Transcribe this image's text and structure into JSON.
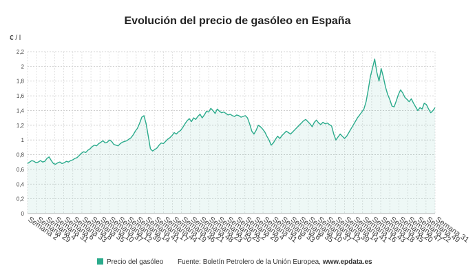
{
  "chart_data": {
    "type": "area",
    "title": "Evolución del precio de gasóleo en España",
    "ylabel": "€ / l",
    "ylim": [
      0,
      2.2
    ],
    "yticks": [
      "0",
      "0,2",
      "0,4",
      "0,6",
      "0,8",
      "1",
      "1,2",
      "1,4",
      "1,6",
      "1,8",
      "2",
      "2,2"
    ],
    "xticks": [
      "Semana 2",
      "Semana 29",
      "Semana 4",
      "Semana 31",
      "Semana 6",
      "Semana 33",
      "Semana 8",
      "Semana 35",
      "Semana 10",
      "Semana 37",
      "Semana 12",
      "Semana 39",
      "Semana 14",
      "Semana 41",
      "Semana 17",
      "Semana 44",
      "Semana 19",
      "Semana 46",
      "Semana 21",
      "Semana 48",
      "Semana 23",
      "Semana 50",
      "Semana 25",
      "Semana 2",
      "Semana 29",
      "Semana 4",
      "Semana 31",
      "Semana 6",
      "Semana 33",
      "Semana 8",
      "Semana 35",
      "Semana 10",
      "Semana 37",
      "Semana 12",
      "Semana 39",
      "Semana 14",
      "Semana 41",
      "Semana 16",
      "Semana 43",
      "Semana 18",
      "Semana 45",
      "Semana 20",
      "Semana 47",
      "Semana 22",
      "Semana 49",
      "Semana 31"
    ],
    "grid": true,
    "legend_position": "bottom",
    "series": [
      {
        "name": "Precio del gasóleo",
        "color": "#2bab8c",
        "values": [
          0.68,
          0.7,
          0.72,
          0.71,
          0.69,
          0.7,
          0.72,
          0.7,
          0.71,
          0.75,
          0.77,
          0.72,
          0.68,
          0.67,
          0.69,
          0.7,
          0.68,
          0.69,
          0.71,
          0.7,
          0.72,
          0.73,
          0.75,
          0.76,
          0.79,
          0.82,
          0.84,
          0.83,
          0.86,
          0.88,
          0.91,
          0.93,
          0.92,
          0.95,
          0.97,
          0.99,
          0.96,
          0.97,
          1.0,
          0.98,
          0.94,
          0.93,
          0.92,
          0.95,
          0.97,
          0.98,
          0.99,
          1.01,
          1.03,
          1.07,
          1.12,
          1.16,
          1.23,
          1.31,
          1.33,
          1.22,
          1.05,
          0.88,
          0.85,
          0.87,
          0.89,
          0.93,
          0.96,
          0.95,
          0.98,
          1.01,
          1.03,
          1.06,
          1.1,
          1.08,
          1.11,
          1.13,
          1.17,
          1.22,
          1.26,
          1.29,
          1.25,
          1.3,
          1.28,
          1.32,
          1.35,
          1.3,
          1.34,
          1.39,
          1.38,
          1.43,
          1.4,
          1.36,
          1.42,
          1.39,
          1.37,
          1.38,
          1.36,
          1.34,
          1.35,
          1.33,
          1.32,
          1.34,
          1.33,
          1.31,
          1.32,
          1.33,
          1.3,
          1.22,
          1.12,
          1.08,
          1.13,
          1.2,
          1.18,
          1.15,
          1.11,
          1.05,
          1.0,
          0.93,
          0.96,
          1.01,
          1.05,
          1.02,
          1.06,
          1.09,
          1.12,
          1.1,
          1.08,
          1.11,
          1.14,
          1.17,
          1.2,
          1.23,
          1.26,
          1.28,
          1.25,
          1.22,
          1.18,
          1.24,
          1.27,
          1.23,
          1.21,
          1.24,
          1.22,
          1.23,
          1.21,
          1.19,
          1.08,
          1.0,
          1.04,
          1.08,
          1.05,
          1.02,
          1.05,
          1.1,
          1.15,
          1.2,
          1.25,
          1.3,
          1.34,
          1.38,
          1.42,
          1.52,
          1.68,
          1.86,
          1.98,
          2.1,
          1.92,
          1.8,
          1.97,
          1.86,
          1.72,
          1.62,
          1.55,
          1.46,
          1.45,
          1.53,
          1.62,
          1.68,
          1.64,
          1.58,
          1.55,
          1.52,
          1.56,
          1.5,
          1.45,
          1.4,
          1.44,
          1.42,
          1.5,
          1.48,
          1.42,
          1.37,
          1.4,
          1.44
        ]
      }
    ],
    "source": "Fuente: Boletín Petrolero de la Unión Europea, ",
    "source_site": "www.epdata.es"
  }
}
